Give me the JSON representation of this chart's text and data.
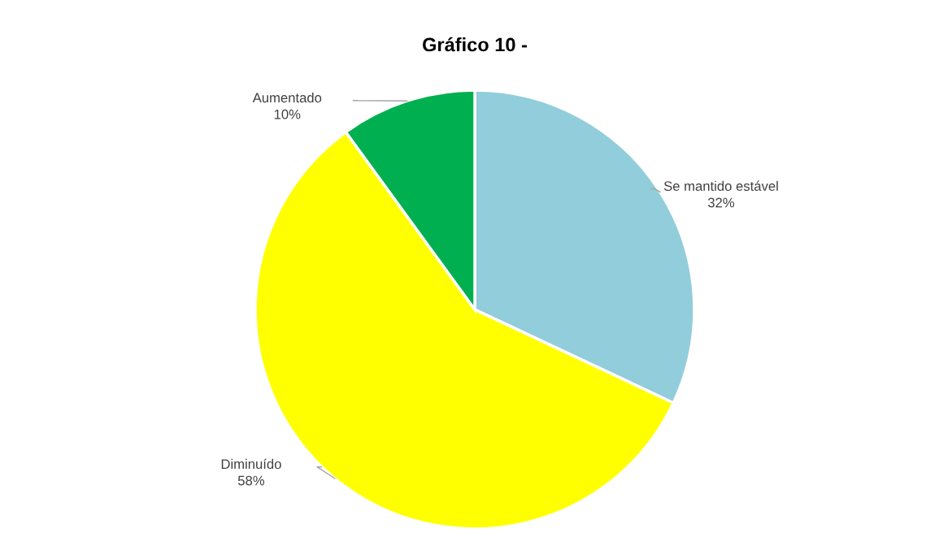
{
  "chart_data": {
    "type": "pie",
    "title": "Gráfico 10 -",
    "categories": [
      "Se mantido estável",
      "Diminuído",
      "Aumentado"
    ],
    "values": [
      32,
      58,
      10
    ],
    "value_labels": [
      "32%",
      "58%",
      "10%"
    ],
    "colors": [
      "#92cddc",
      "#ffff00",
      "#00b050"
    ],
    "legend": false
  }
}
